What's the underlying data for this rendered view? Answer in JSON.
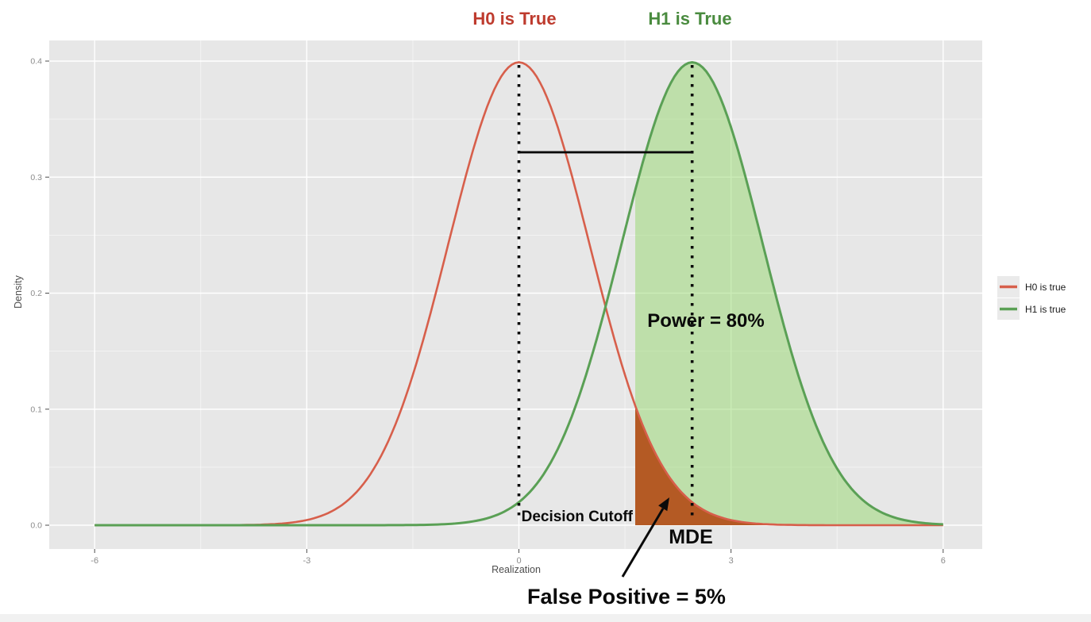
{
  "titles": {
    "h0": {
      "text": "H0 is True",
      "color": "#BE3B2E"
    },
    "h1": {
      "text": "H1 is True",
      "color": "#4A8B3F"
    }
  },
  "axes": {
    "xlabel": "Realization",
    "ylabel": "Density",
    "x_tick_labels": [
      "-6",
      "-3",
      "0",
      "3",
      "6"
    ],
    "y_tick_labels": [
      "0.0",
      "0.1",
      "0.2",
      "0.3",
      "0.4"
    ]
  },
  "annotations": {
    "power_label": "Power = 80%",
    "decision_cutoff_label": "Decision Cutoff",
    "mde_label": "MDE",
    "false_positive_label": "False Positive = 5%"
  },
  "legend": {
    "items": [
      {
        "label": "H0 is true",
        "color": "#D75F4B"
      },
      {
        "label": "H1 is true",
        "color": "#5AA055"
      }
    ]
  },
  "colors": {
    "panel_bg": "#E7E7E7",
    "gridline": "#FFFFFF",
    "tick_label": "#8C8C8C",
    "tick_mark": "#4d4d4d",
    "legend_key_bg": "#EAEAEA",
    "annotation_black": "#0a0a0a",
    "bottom_strip": "#F1F1F1"
  },
  "chart_data": {
    "type": "area",
    "title": "Statistical power illustration: H0 vs H1 normal densities",
    "xlabel": "Realization",
    "ylabel": "Density",
    "x_ticks": [
      -6,
      -3,
      0,
      3,
      6
    ],
    "y_ticks": [
      0.0,
      0.1,
      0.2,
      0.3,
      0.4
    ],
    "x_range": [
      -6.6,
      6.6
    ],
    "y_range": [
      0,
      0.418
    ],
    "grid": true,
    "legend_position": "right",
    "series": [
      {
        "name": "H0 is true",
        "distribution": "normal",
        "mean": 0,
        "sd": 1,
        "color": "#D75F4B",
        "stroke_width": 2.6
      },
      {
        "name": "H1 is true",
        "distribution": "normal",
        "mean": 2.45,
        "sd": 1,
        "color": "#5AA055",
        "stroke_width": 3,
        "fill": "rgba(150,215,110,0.5)"
      }
    ],
    "decision_cutoff": 1.645,
    "mde": 2.45,
    "power_pct": 80,
    "false_positive_pct": 5,
    "false_positive_fill": "#B45A24",
    "mean_connector_density": 0.3214
  }
}
